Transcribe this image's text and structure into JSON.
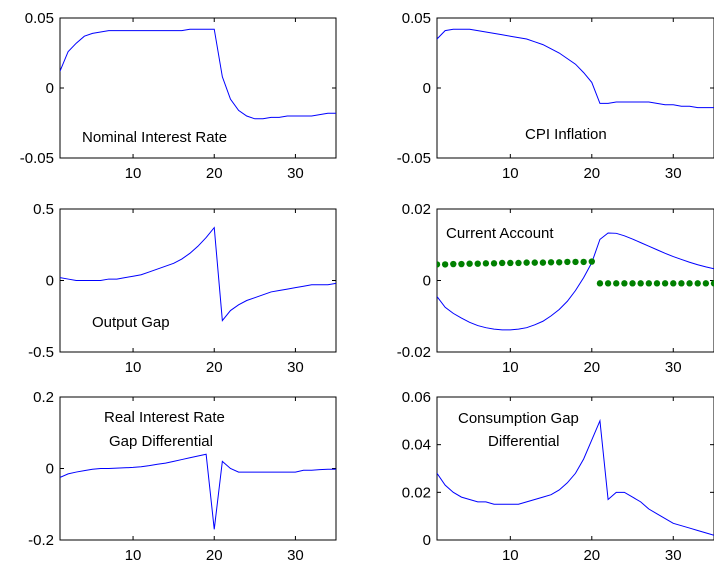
{
  "chart_data": [
    {
      "id": "nominal-interest-rate",
      "type": "line",
      "annotation": [
        "Nominal Interest Rate"
      ],
      "xlim": [
        1,
        35
      ],
      "ylim": [
        -0.05,
        0.05
      ],
      "xticks": [
        10,
        20,
        30
      ],
      "yticks": [
        0.05,
        0,
        -0.05
      ],
      "ytick_labels": [
        "0.05",
        "0",
        "-0.05"
      ],
      "series": [
        {
          "color": "#0000ff",
          "style": "line",
          "x": [
            1,
            2,
            3,
            4,
            5,
            6,
            7,
            8,
            9,
            10,
            11,
            12,
            13,
            14,
            15,
            16,
            17,
            18,
            19,
            20,
            21,
            22,
            23,
            24,
            25,
            26,
            27,
            28,
            29,
            30,
            31,
            32,
            33,
            34,
            35
          ],
          "y": [
            0.012,
            0.026,
            0.032,
            0.037,
            0.039,
            0.04,
            0.041,
            0.041,
            0.041,
            0.041,
            0.041,
            0.041,
            0.041,
            0.041,
            0.041,
            0.041,
            0.042,
            0.042,
            0.042,
            0.042,
            0.008,
            -0.008,
            -0.016,
            -0.02,
            -0.022,
            -0.022,
            -0.021,
            -0.021,
            -0.02,
            -0.02,
            -0.02,
            -0.02,
            -0.019,
            -0.018,
            -0.018
          ]
        }
      ]
    },
    {
      "id": "cpi-inflation",
      "type": "line",
      "annotation": [
        "CPI Inflation"
      ],
      "xlim": [
        1,
        35
      ],
      "ylim": [
        -0.05,
        0.05
      ],
      "xticks": [
        10,
        20,
        30
      ],
      "yticks": [
        0.05,
        0,
        -0.05
      ],
      "ytick_labels": [
        "0.05",
        "0",
        "-0.05"
      ],
      "series": [
        {
          "color": "#0000ff",
          "style": "line",
          "x": [
            1,
            2,
            3,
            4,
            5,
            6,
            7,
            8,
            9,
            10,
            11,
            12,
            13,
            14,
            15,
            16,
            17,
            18,
            19,
            20,
            21,
            22,
            23,
            24,
            25,
            26,
            27,
            28,
            29,
            30,
            31,
            32,
            33,
            34,
            35
          ],
          "y": [
            0.035,
            0.041,
            0.042,
            0.042,
            0.042,
            0.041,
            0.04,
            0.039,
            0.038,
            0.037,
            0.036,
            0.035,
            0.033,
            0.031,
            0.028,
            0.025,
            0.021,
            0.017,
            0.011,
            0.004,
            -0.011,
            -0.011,
            -0.01,
            -0.01,
            -0.01,
            -0.01,
            -0.01,
            -0.011,
            -0.012,
            -0.012,
            -0.013,
            -0.013,
            -0.014,
            -0.014,
            -0.014
          ]
        }
      ]
    },
    {
      "id": "output-gap",
      "type": "line",
      "annotation": [
        "Output Gap"
      ],
      "xlim": [
        1,
        35
      ],
      "ylim": [
        -0.5,
        0.5
      ],
      "xticks": [
        10,
        20,
        30
      ],
      "yticks": [
        0.5,
        0,
        -0.5
      ],
      "ytick_labels": [
        "0.5",
        "0",
        "-0.5"
      ],
      "series": [
        {
          "color": "#0000ff",
          "style": "line",
          "x": [
            1,
            2,
            3,
            4,
            5,
            6,
            7,
            8,
            9,
            10,
            11,
            12,
            13,
            14,
            15,
            16,
            17,
            18,
            19,
            20,
            21,
            22,
            23,
            24,
            25,
            26,
            27,
            28,
            29,
            30,
            31,
            32,
            33,
            34,
            35
          ],
          "y": [
            0.02,
            0.01,
            0.0,
            0.0,
            0.0,
            0.0,
            0.01,
            0.01,
            0.02,
            0.03,
            0.04,
            0.06,
            0.08,
            0.1,
            0.12,
            0.15,
            0.19,
            0.24,
            0.3,
            0.37,
            -0.28,
            -0.21,
            -0.17,
            -0.14,
            -0.12,
            -0.1,
            -0.08,
            -0.07,
            -0.06,
            -0.05,
            -0.04,
            -0.03,
            -0.03,
            -0.03,
            -0.02
          ]
        }
      ]
    },
    {
      "id": "current-account",
      "type": "line",
      "annotation": [
        "Current Account"
      ],
      "xlim": [
        1,
        35
      ],
      "ylim": [
        -0.02,
        0.02
      ],
      "xticks": [
        10,
        20,
        30
      ],
      "yticks": [
        0.02,
        0,
        -0.02
      ],
      "ytick_labels": [
        "0.02",
        "0",
        "-0.02"
      ],
      "series": [
        {
          "color": "#0000ff",
          "style": "line",
          "x": [
            1,
            2,
            3,
            4,
            5,
            6,
            7,
            8,
            9,
            10,
            11,
            12,
            13,
            14,
            15,
            16,
            17,
            18,
            19,
            20,
            21,
            22,
            23,
            24,
            25,
            26,
            27,
            28,
            29,
            30,
            31,
            32,
            33,
            34,
            35
          ],
          "y": [
            -0.0045,
            -0.0075,
            -0.0092,
            -0.0105,
            -0.0117,
            -0.0126,
            -0.0132,
            -0.0136,
            -0.0138,
            -0.0138,
            -0.0136,
            -0.0132,
            -0.0124,
            -0.0114,
            -0.0099,
            -0.0081,
            -0.0058,
            -0.0028,
            0.0008,
            0.005,
            0.0115,
            0.0133,
            0.0132,
            0.0125,
            0.0116,
            0.0106,
            0.0096,
            0.0086,
            0.0076,
            0.0067,
            0.0059,
            0.0051,
            0.0044,
            0.0038,
            0.0033
          ]
        },
        {
          "color": "#008000",
          "style": "dots",
          "x": [
            1,
            2,
            3,
            4,
            5,
            6,
            7,
            8,
            9,
            10,
            11,
            12,
            13,
            14,
            15,
            16,
            17,
            18,
            19,
            20,
            21,
            22,
            23,
            24,
            25,
            26,
            27,
            28,
            29,
            30,
            31,
            32,
            33,
            34,
            35
          ],
          "y": [
            0.0045,
            0.0045,
            0.0046,
            0.0046,
            0.0047,
            0.0047,
            0.0048,
            0.0048,
            0.0049,
            0.0049,
            0.0049,
            0.005,
            0.005,
            0.005,
            0.0051,
            0.0051,
            0.0052,
            0.0052,
            0.0052,
            0.0053,
            -0.0008,
            -0.0008,
            -0.0008,
            -0.0008,
            -0.0008,
            -0.0008,
            -0.0008,
            -0.0008,
            -0.0008,
            -0.0008,
            -0.0008,
            -0.0008,
            -0.0008,
            -0.0008,
            -0.0008
          ]
        }
      ]
    },
    {
      "id": "real-interest-rate-gap-differential",
      "type": "line",
      "annotation": [
        "Real Interest Rate",
        "Gap Differential"
      ],
      "xlim": [
        1,
        35
      ],
      "ylim": [
        -0.2,
        0.2
      ],
      "xticks": [
        10,
        20,
        30
      ],
      "yticks": [
        0.2,
        0,
        -0.2
      ],
      "ytick_labels": [
        "0.2",
        "0",
        "-0.2"
      ],
      "series": [
        {
          "color": "#0000ff",
          "style": "line",
          "x": [
            1,
            2,
            3,
            4,
            5,
            6,
            7,
            8,
            9,
            10,
            11,
            12,
            13,
            14,
            15,
            16,
            17,
            18,
            19,
            20,
            21,
            22,
            23,
            24,
            25,
            26,
            27,
            28,
            29,
            30,
            31,
            32,
            33,
            34,
            35
          ],
          "y": [
            -0.025,
            -0.015,
            -0.01,
            -0.006,
            -0.002,
            0.0,
            0.0,
            0.001,
            0.002,
            0.003,
            0.005,
            0.008,
            0.012,
            0.015,
            0.02,
            0.025,
            0.03,
            0.035,
            0.04,
            -0.17,
            0.02,
            0.0,
            -0.01,
            -0.01,
            -0.01,
            -0.01,
            -0.01,
            -0.01,
            -0.01,
            -0.01,
            -0.005,
            -0.005,
            -0.003,
            -0.002,
            -0.002
          ]
        }
      ]
    },
    {
      "id": "consumption-gap-differential",
      "type": "line",
      "annotation": [
        "Consumption Gap",
        "Differential"
      ],
      "xlim": [
        1,
        35
      ],
      "ylim": [
        0,
        0.06
      ],
      "xticks": [
        10,
        20,
        30
      ],
      "yticks": [
        0.06,
        0.04,
        0.02,
        0
      ],
      "ytick_labels": [
        "0.06",
        "0.04",
        "0.02",
        "0"
      ],
      "series": [
        {
          "color": "#0000ff",
          "style": "line",
          "x": [
            1,
            2,
            3,
            4,
            5,
            6,
            7,
            8,
            9,
            10,
            11,
            12,
            13,
            14,
            15,
            16,
            17,
            18,
            19,
            20,
            21,
            22,
            23,
            24,
            25,
            26,
            27,
            28,
            29,
            30,
            31,
            32,
            33,
            34,
            35
          ],
          "y": [
            0.028,
            0.023,
            0.02,
            0.018,
            0.017,
            0.016,
            0.016,
            0.015,
            0.015,
            0.015,
            0.015,
            0.016,
            0.017,
            0.018,
            0.019,
            0.021,
            0.024,
            0.028,
            0.034,
            0.042,
            0.05,
            0.017,
            0.02,
            0.02,
            0.018,
            0.016,
            0.013,
            0.011,
            0.009,
            0.007,
            0.006,
            0.005,
            0.004,
            0.003,
            0.002
          ]
        }
      ]
    }
  ]
}
